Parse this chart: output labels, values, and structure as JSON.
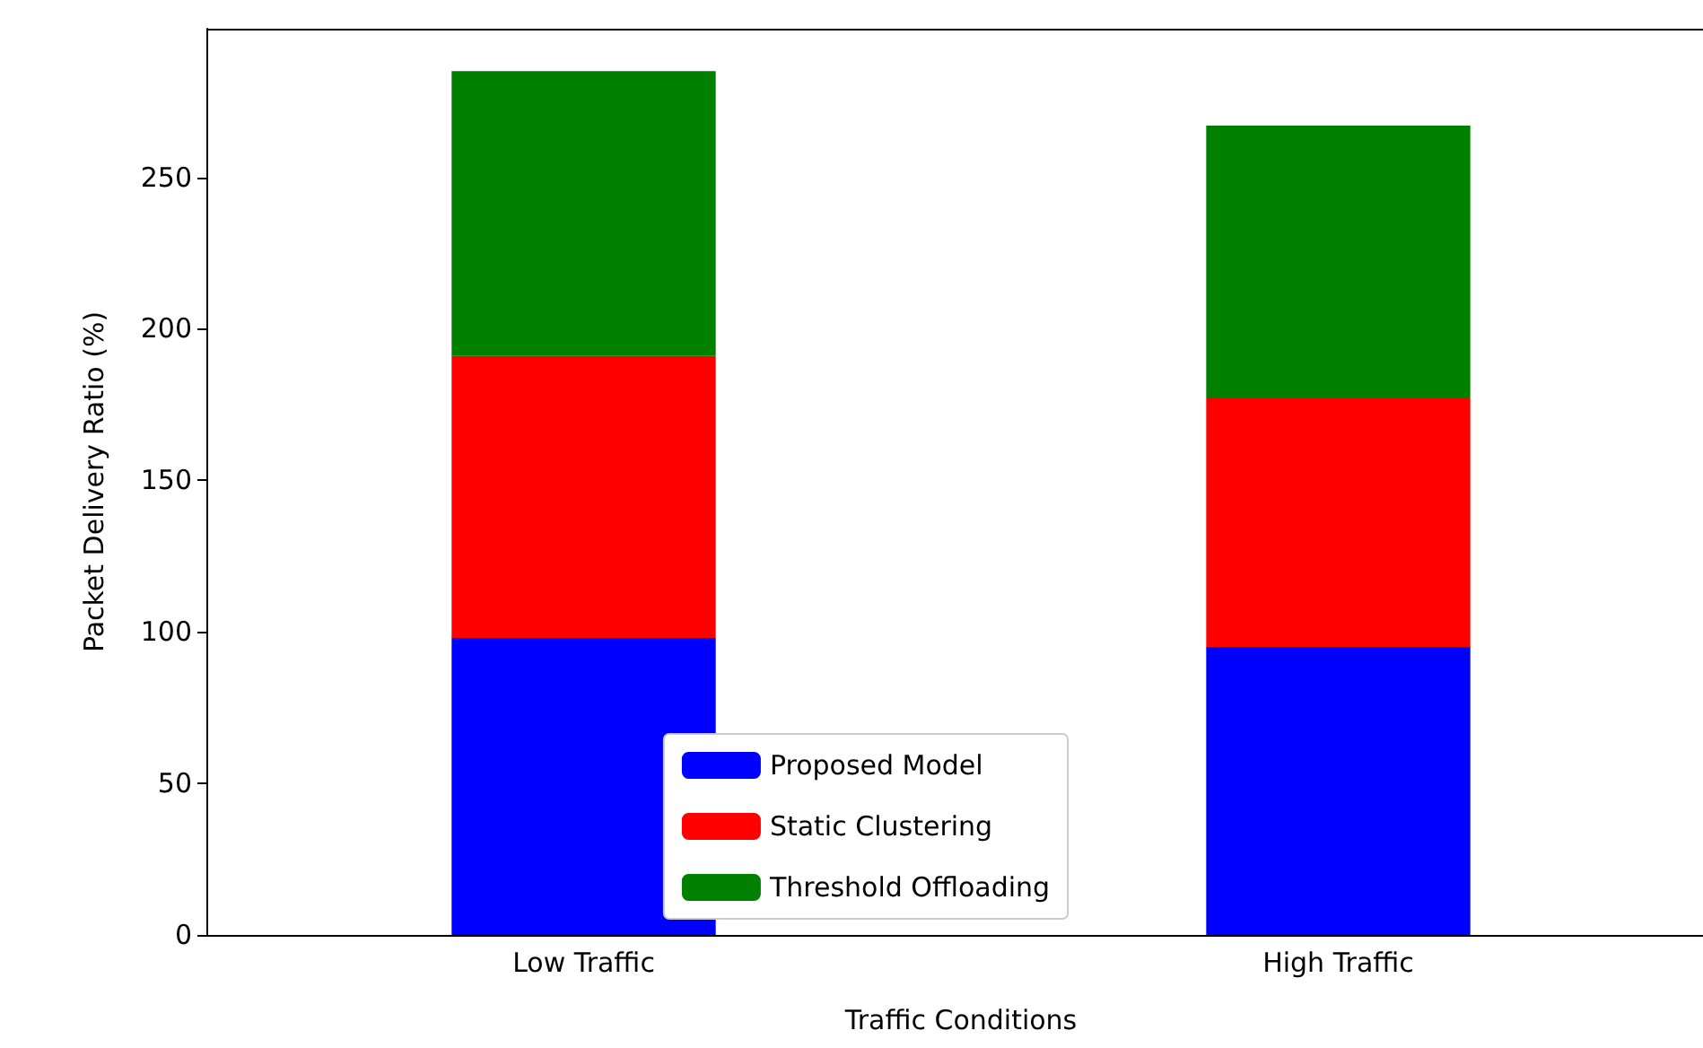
{
  "chart_data": {
    "type": "bar",
    "stacked": true,
    "xlabel": "Traffic Conditions",
    "ylabel": "Packet Delivery Ratio (%)",
    "categories": [
      "Low Traffic",
      "High Traffic"
    ],
    "series": [
      {
        "name": "Proposed Model",
        "color": "#0000ff",
        "values": [
          98,
          95
        ]
      },
      {
        "name": "Static Clustering",
        "color": "#ff0000",
        "values": [
          93,
          82
        ]
      },
      {
        "name": "Threshold Offloading",
        "color": "#008000",
        "values": [
          94,
          90
        ]
      }
    ],
    "ylim": [
      0,
      299
    ],
    "yticks": [
      0,
      50,
      100,
      150,
      200,
      250
    ],
    "grid": false,
    "legend": "bottom"
  }
}
